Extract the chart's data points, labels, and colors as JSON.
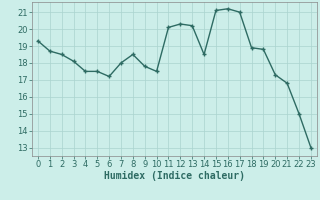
{
  "x": [
    0,
    1,
    2,
    3,
    4,
    5,
    6,
    7,
    8,
    9,
    10,
    11,
    12,
    13,
    14,
    15,
    16,
    17,
    18,
    19,
    20,
    21,
    22,
    23
  ],
  "y": [
    19.3,
    18.7,
    18.5,
    18.1,
    17.5,
    17.5,
    17.2,
    18.0,
    18.5,
    17.8,
    17.5,
    20.1,
    20.3,
    20.2,
    18.5,
    21.1,
    21.2,
    21.0,
    18.9,
    18.8,
    17.3,
    16.8,
    15.0,
    13.0
  ],
  "line_color": "#2e6b63",
  "marker": "+",
  "marker_size": 3.0,
  "marker_lw": 1.0,
  "line_width": 1.0,
  "bg_color": "#cceee9",
  "grid_color": "#aad4cf",
  "xlabel": "Humidex (Indice chaleur)",
  "xlabel_fontsize": 7,
  "tick_fontsize": 6,
  "ylim": [
    12.5,
    21.6
  ],
  "yticks": [
    13,
    14,
    15,
    16,
    17,
    18,
    19,
    20,
    21
  ],
  "xlim": [
    -0.5,
    23.5
  ],
  "xticks": [
    0,
    1,
    2,
    3,
    4,
    5,
    6,
    7,
    8,
    9,
    10,
    11,
    12,
    13,
    14,
    15,
    16,
    17,
    18,
    19,
    20,
    21,
    22,
    23
  ]
}
